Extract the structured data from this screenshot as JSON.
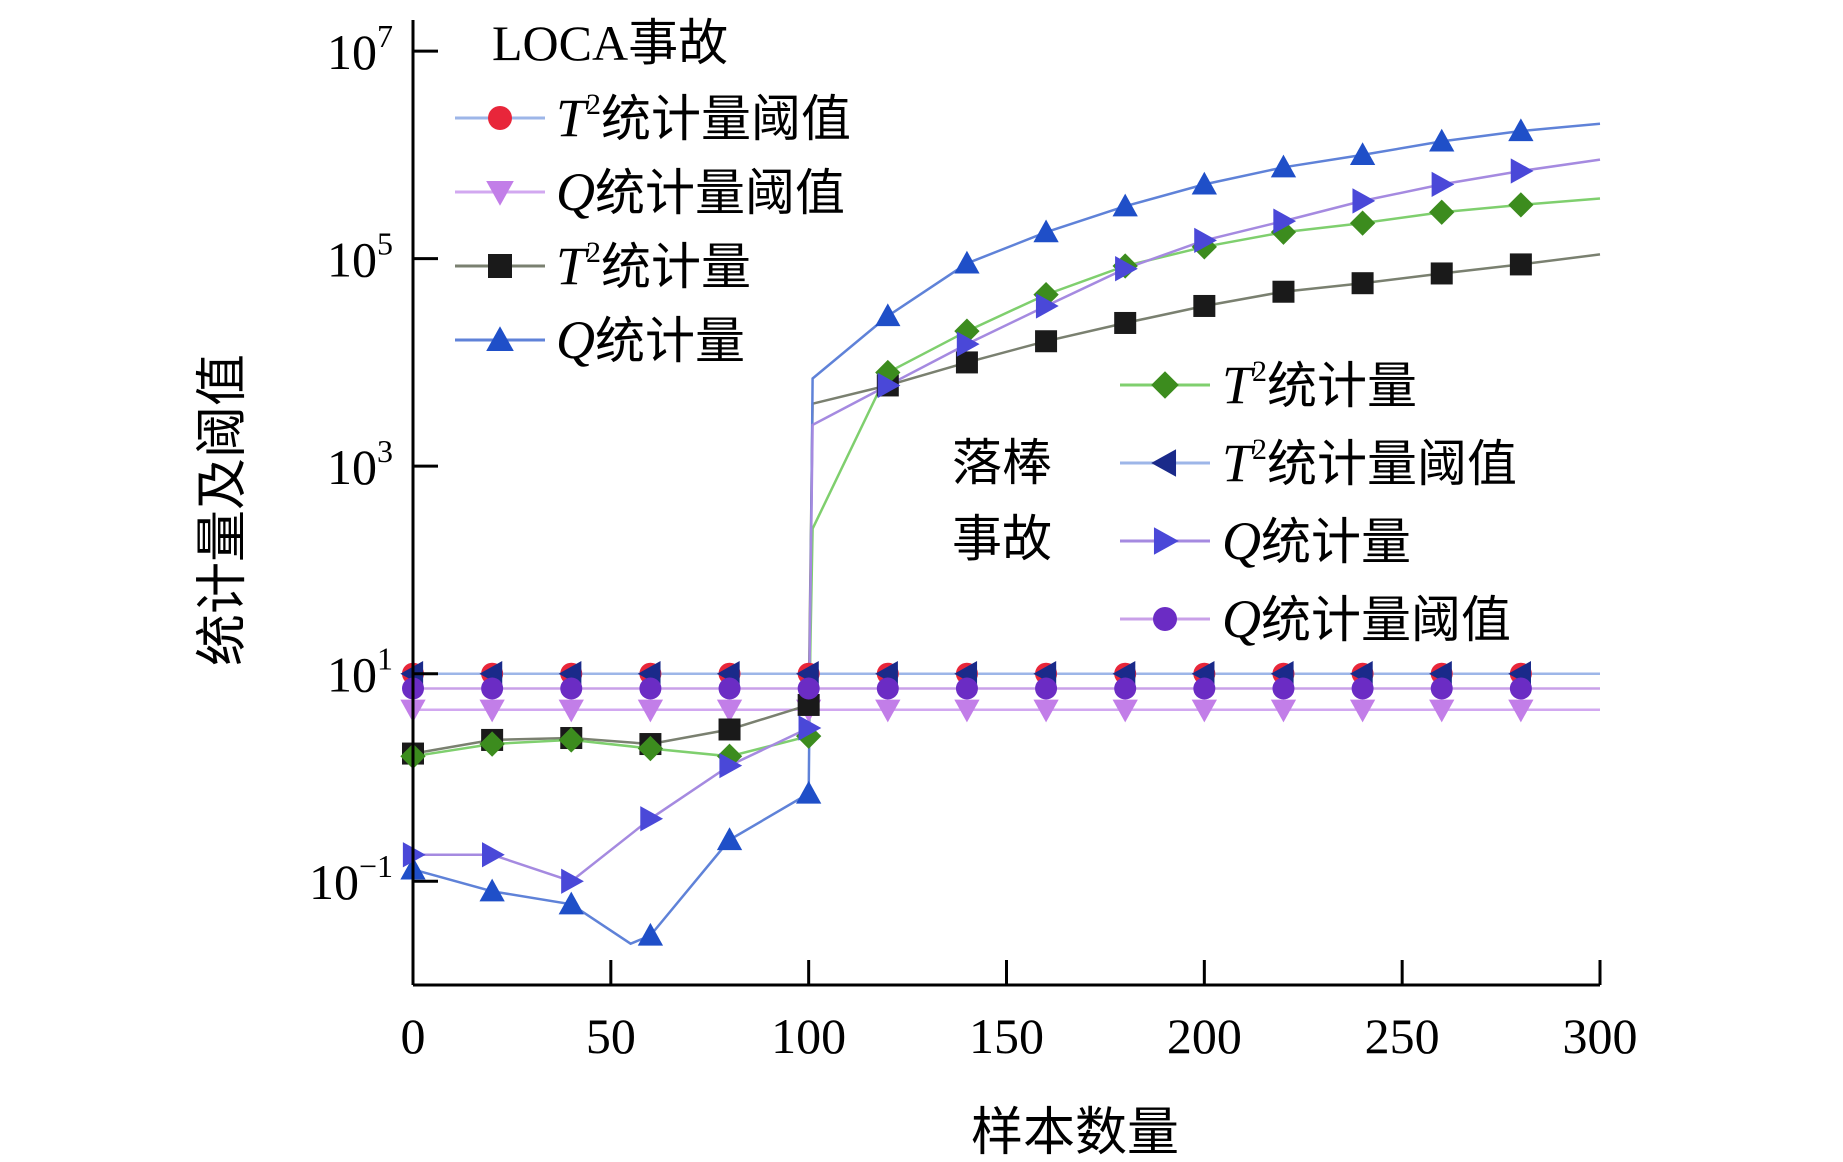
{
  "chart_data": {
    "type": "line",
    "xlabel": "样本数量",
    "ylabel": "统计量及阈值",
    "xlim": [
      0,
      300
    ],
    "ylim_log10": [
      -2,
      7.3
    ],
    "y_scale": "log",
    "x_ticks": [
      {
        "value": 0,
        "label": "0"
      },
      {
        "value": 50,
        "label": "50"
      },
      {
        "value": 100,
        "label": "100"
      },
      {
        "value": 150,
        "label": "150"
      },
      {
        "value": 200,
        "label": "200"
      },
      {
        "value": 250,
        "label": "250"
      },
      {
        "value": 300,
        "label": "300"
      }
    ],
    "y_ticks": [
      {
        "value": 0.1,
        "base": "10",
        "exp": "−1"
      },
      {
        "value": 10,
        "base": "10",
        "exp": "1"
      },
      {
        "value": 1000,
        "base": "10",
        "exp": "3"
      },
      {
        "value": 100000,
        "base": "10",
        "exp": "5"
      },
      {
        "value": 10000000,
        "base": "10",
        "exp": "7"
      }
    ],
    "grid": false,
    "legend_groups": [
      {
        "title": "LOCA事故",
        "placement": "top-left",
        "entries": [
          {
            "sym": "T",
            "sup": "2",
            "text": "统计量阈值",
            "series": 0
          },
          {
            "sym": "Q",
            "sup": "",
            "text": "统计量阈值",
            "series": 1
          },
          {
            "sym": "T",
            "sup": "2",
            "text": "统计量",
            "series": 2
          },
          {
            "sym": "Q",
            "sup": "",
            "text": "统计量",
            "series": 3
          }
        ]
      },
      {
        "title_lines": [
          "落棒",
          "事故"
        ],
        "placement": "center-right",
        "entries": [
          {
            "sym": "T",
            "sup": "2",
            "text": "统计量",
            "series": 4
          },
          {
            "sym": "T",
            "sup": "2",
            "text": "统计量阈值",
            "series": 5
          },
          {
            "sym": "Q",
            "sup": "",
            "text": "统计量",
            "series": 6
          },
          {
            "sym": "Q",
            "sup": "",
            "text": "统计量阈值",
            "series": 7
          }
        ]
      }
    ],
    "series": [
      {
        "group": "LOCA事故",
        "marker": "circle",
        "color": "#e8263a",
        "line_color": "#9db6e8",
        "x": [
          0,
          20,
          40,
          60,
          80,
          100,
          120,
          140,
          160,
          180,
          200,
          220,
          240,
          260,
          280,
          300
        ],
        "y": [
          10,
          10,
          10,
          10,
          10,
          10,
          10,
          10,
          10,
          10,
          10,
          10,
          10,
          10,
          10,
          10
        ]
      },
      {
        "group": "LOCA事故",
        "marker": "triangle-down",
        "color": "#c27ee8",
        "line_color": "#d2a8f0",
        "x": [
          0,
          20,
          40,
          60,
          80,
          100,
          120,
          140,
          160,
          180,
          200,
          220,
          240,
          260,
          280,
          300
        ],
        "y": [
          4.5,
          4.5,
          4.5,
          4.5,
          4.5,
          4.5,
          4.5,
          4.5,
          4.5,
          4.5,
          4.5,
          4.5,
          4.5,
          4.5,
          4.5,
          4.5
        ]
      },
      {
        "group": "LOCA事故",
        "marker": "square",
        "color": "#1a1a1a",
        "line_color": "#7a8070",
        "x": [
          0,
          20,
          40,
          60,
          80,
          100,
          101,
          120,
          140,
          160,
          180,
          200,
          220,
          240,
          260,
          280,
          300
        ],
        "y": [
          1.7,
          2.3,
          2.4,
          2.1,
          2.9,
          5.0,
          4000,
          6000,
          10000,
          16000,
          24000,
          35000,
          48000,
          58000,
          72000,
          88000,
          110000
        ]
      },
      {
        "group": "LOCA事故",
        "marker": "triangle-up",
        "color": "#1f4fc8",
        "line_color": "#5f82d8",
        "x": [
          0,
          20,
          40,
          55,
          60,
          80,
          100,
          101,
          120,
          140,
          160,
          180,
          200,
          220,
          240,
          260,
          280,
          300
        ],
        "y": [
          0.13,
          0.08,
          0.06,
          0.025,
          0.03,
          0.25,
          0.7,
          7000,
          28000,
          90000,
          180000,
          320000,
          520000,
          760000,
          1000000,
          1350000,
          1700000,
          2000000
        ]
      },
      {
        "group": "落棒事故",
        "marker": "diamond",
        "color": "#3c8c1e",
        "line_color": "#7fcf6e",
        "x": [
          0,
          20,
          40,
          60,
          80,
          100,
          101,
          120,
          140,
          160,
          180,
          200,
          220,
          240,
          260,
          280,
          300
        ],
        "y": [
          1.6,
          2.1,
          2.3,
          1.9,
          1.6,
          2.5,
          250,
          8000,
          20000,
          45000,
          85000,
          130000,
          180000,
          220000,
          280000,
          330000,
          380000
        ]
      },
      {
        "group": "落棒事故",
        "marker": "triangle-left",
        "color": "#1a2a8a",
        "line_color": "#9db6e8",
        "x": [
          0,
          20,
          40,
          60,
          80,
          100,
          120,
          140,
          160,
          180,
          200,
          220,
          240,
          260,
          280,
          300
        ],
        "y": [
          10,
          10,
          10,
          10,
          10,
          10,
          10,
          10,
          10,
          10,
          10,
          10,
          10,
          10,
          10,
          10
        ]
      },
      {
        "group": "落棒事故",
        "marker": "triangle-right",
        "color": "#4a48d8",
        "line_color": "#a58ae0",
        "x": [
          0,
          20,
          40,
          60,
          80,
          100,
          101,
          120,
          140,
          160,
          180,
          200,
          220,
          240,
          260,
          280,
          300
        ],
        "y": [
          0.18,
          0.18,
          0.1,
          0.4,
          1.3,
          3.0,
          2500,
          6000,
          15000,
          35000,
          80000,
          150000,
          230000,
          360000,
          520000,
          700000,
          900000
        ]
      },
      {
        "group": "落棒事故",
        "marker": "circle",
        "color": "#6b2cc4",
        "line_color": "#c9a0e8",
        "x": [
          0,
          20,
          40,
          60,
          80,
          100,
          120,
          140,
          160,
          180,
          200,
          220,
          240,
          260,
          280,
          300
        ],
        "y": [
          7.2,
          7.2,
          7.2,
          7.2,
          7.2,
          7.2,
          7.2,
          7.2,
          7.2,
          7.2,
          7.2,
          7.2,
          7.2,
          7.2,
          7.2,
          7.2
        ]
      }
    ]
  }
}
